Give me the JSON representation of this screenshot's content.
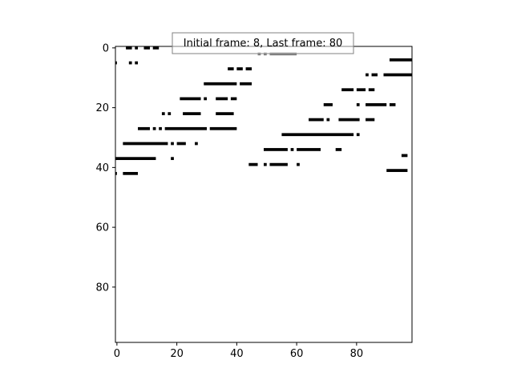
{
  "chart_data": {
    "type": "raster",
    "title": "Initial frame: 8, Last frame: 80",
    "xlim": [
      0,
      99
    ],
    "ylim": [
      99,
      0
    ],
    "xticks": [
      0,
      20,
      40,
      60,
      80
    ],
    "yticks": [
      0,
      20,
      40,
      60,
      80
    ],
    "xlabel": "",
    "ylabel": "",
    "grid": false,
    "segment_color": "#000000",
    "highlight_color": "#808080",
    "segments": [
      [
        0,
        4,
        6
      ],
      [
        0,
        7,
        8
      ],
      [
        0,
        10,
        12
      ],
      [
        0,
        13,
        15
      ],
      [
        5,
        0,
        1
      ],
      [
        5,
        5,
        6
      ],
      [
        5,
        7,
        8
      ],
      [
        12,
        30,
        41
      ],
      [
        12,
        42,
        46
      ],
      [
        7,
        38,
        40
      ],
      [
        7,
        41,
        43
      ],
      [
        7,
        44,
        46
      ],
      [
        17,
        22,
        29
      ],
      [
        17,
        30,
        31
      ],
      [
        17,
        34,
        38
      ],
      [
        17,
        39,
        41
      ],
      [
        22,
        16,
        17
      ],
      [
        22,
        18,
        19
      ],
      [
        22,
        23,
        29
      ],
      [
        22,
        34,
        40
      ],
      [
        27,
        8,
        12
      ],
      [
        27,
        13,
        14
      ],
      [
        27,
        15,
        16
      ],
      [
        27,
        17,
        31
      ],
      [
        27,
        32,
        41
      ],
      [
        32,
        3,
        18
      ],
      [
        32,
        19,
        20
      ],
      [
        32,
        21,
        24
      ],
      [
        32,
        27,
        28
      ],
      [
        37,
        0,
        14
      ],
      [
        37,
        19,
        20
      ],
      [
        42,
        0,
        1
      ],
      [
        42,
        3,
        8
      ],
      [
        4,
        92,
        100
      ],
      [
        9,
        84,
        85
      ],
      [
        9,
        86,
        88
      ],
      [
        9,
        90,
        100
      ],
      [
        14,
        76,
        80
      ],
      [
        14,
        81,
        84
      ],
      [
        14,
        85,
        87
      ],
      [
        19,
        70,
        73
      ],
      [
        19,
        81,
        82
      ],
      [
        19,
        84,
        91
      ],
      [
        19,
        92,
        94
      ],
      [
        24,
        65,
        70
      ],
      [
        24,
        71,
        72
      ],
      [
        24,
        75,
        82
      ],
      [
        24,
        84,
        87
      ],
      [
        29,
        56,
        80
      ],
      [
        29,
        81,
        82
      ],
      [
        34,
        50,
        58
      ],
      [
        34,
        59,
        60
      ],
      [
        34,
        61,
        69
      ],
      [
        34,
        74,
        76
      ],
      [
        36,
        96,
        98
      ],
      [
        39,
        45,
        48
      ],
      [
        39,
        50,
        51
      ],
      [
        39,
        52,
        58
      ],
      [
        39,
        61,
        62
      ],
      [
        41,
        91,
        98
      ]
    ],
    "highlight_segments": [
      [
        2,
        48,
        49
      ],
      [
        2,
        50,
        51
      ],
      [
        2,
        52,
        61
      ]
    ]
  }
}
